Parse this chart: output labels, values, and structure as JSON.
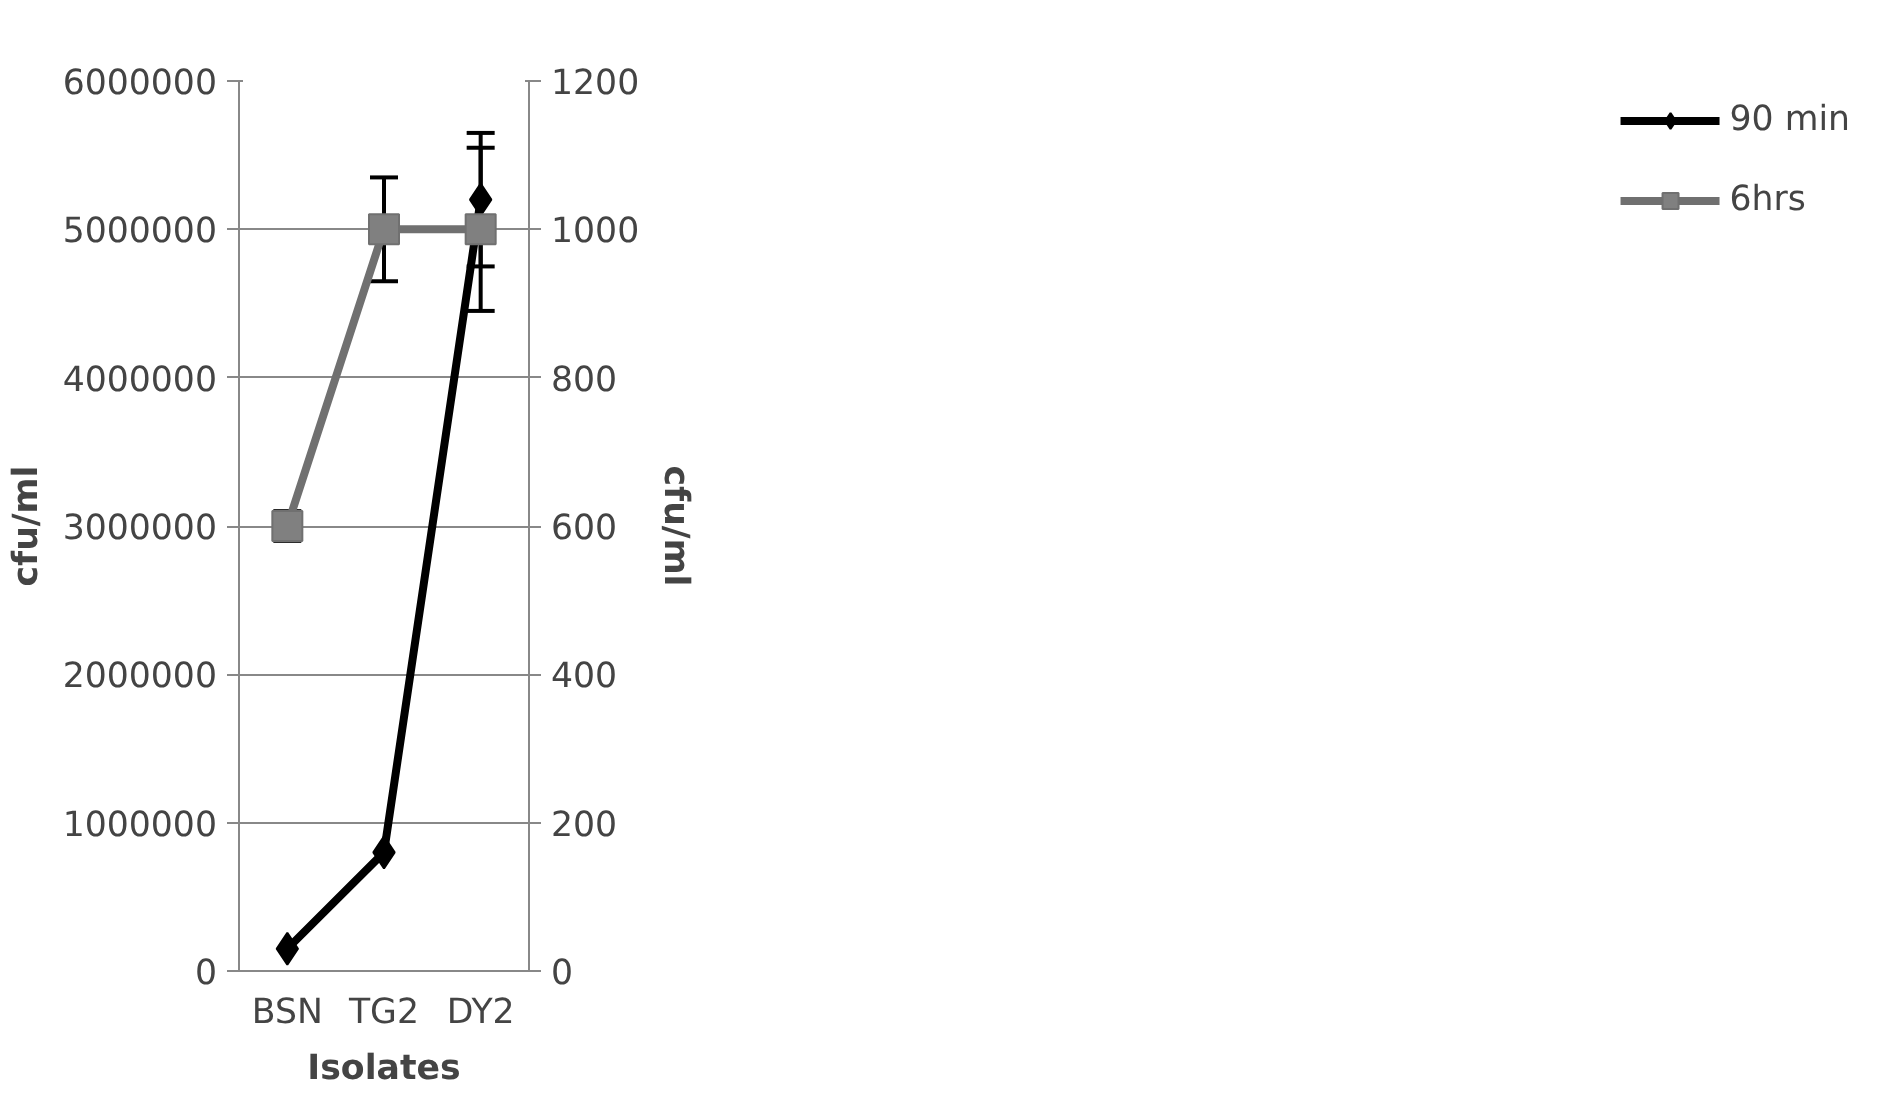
{
  "chart_data": {
    "type": "line",
    "xlabel": "Isolates",
    "ylabel": "cfu/ml",
    "y2label": "cfu/ml",
    "categories": [
      "BSN",
      "TG2",
      "DY2"
    ],
    "series": [
      {
        "name": "90 min",
        "color": "#000000",
        "marker": "diamond",
        "values": [
          150000,
          800000,
          5200000
        ],
        "errors": [
          null,
          null,
          450000
        ]
      },
      {
        "name": "6hrs",
        "color": "#707070",
        "marker": "square",
        "axis": "y2",
        "values": [
          600,
          1000,
          1000
        ],
        "errors": [
          20,
          70,
          110
        ]
      }
    ],
    "ylim": [
      0,
      6000000
    ],
    "yticks": [
      0,
      1000000,
      2000000,
      3000000,
      4000000,
      5000000,
      6000000
    ],
    "y2lim": [
      0,
      1200
    ],
    "y2ticks": [
      0,
      200,
      400,
      600,
      800,
      1000,
      1200
    ],
    "grid": "y",
    "legend": "right",
    "line_style": "solid"
  }
}
